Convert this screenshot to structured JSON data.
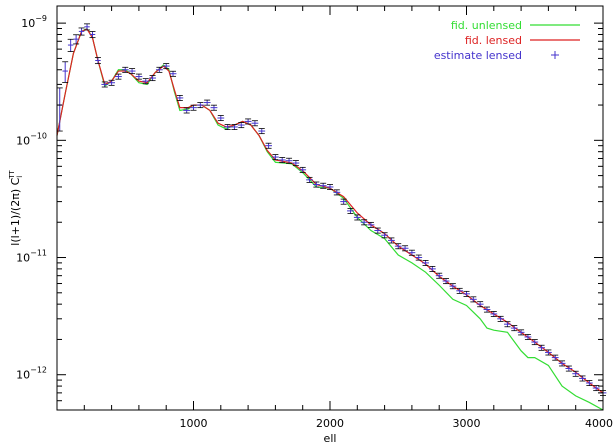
{
  "chart_data": {
    "type": "line",
    "xlabel": "ell",
    "ylabel": "l(l+1)/(2π) C",
    "ylabel_sub": "l",
    "ylabel_sup": "TT",
    "xlim": [
      0,
      4000
    ],
    "ylim": [
      5e-13,
      1.4e-09
    ],
    "yscale": "log",
    "grid": false,
    "legend_position": "top-right",
    "x_ticks": [
      {
        "value": 1000,
        "label": "1000"
      },
      {
        "value": 2000,
        "label": "2000"
      },
      {
        "value": 3000,
        "label": "3000"
      },
      {
        "value": 4000,
        "label": "4000"
      }
    ],
    "y_ticks": [
      {
        "value": 1e-09,
        "base": "10",
        "exp": "−9"
      },
      {
        "value": 1e-10,
        "base": "10",
        "exp": "−10"
      },
      {
        "value": 1e-11,
        "base": "10",
        "exp": "−11"
      },
      {
        "value": 1e-12,
        "base": "10",
        "exp": "−12"
      }
    ],
    "series": [
      {
        "name": "fid. unlensed",
        "style": "line",
        "color": "#33dd33",
        "x": [
          0,
          60,
          120,
          180,
          220,
          260,
          300,
          350,
          400,
          450,
          500,
          540,
          600,
          660,
          720,
          780,
          820,
          860,
          900,
          960,
          1000,
          1060,
          1120,
          1180,
          1240,
          1300,
          1360,
          1420,
          1480,
          1540,
          1600,
          1660,
          1720,
          1800,
          1900,
          2000,
          2100,
          2200,
          2300,
          2400,
          2500,
          2600,
          2700,
          2800,
          2900,
          3000,
          3100,
          3150,
          3200,
          3300,
          3400,
          3450,
          3500,
          3600,
          3700,
          3800,
          3900,
          4000
        ],
        "y": [
          1.1e-10,
          2.5e-10,
          5.5e-10,
          8.5e-10,
          9e-10,
          7.5e-10,
          4.8e-10,
          2.9e-10,
          3.2e-10,
          4e-10,
          4e-10,
          3.7e-10,
          3.1e-10,
          3e-10,
          3.8e-10,
          4.4e-10,
          4e-10,
          2.6e-10,
          1.8e-10,
          1.85e-10,
          2e-10,
          2e-10,
          1.8e-10,
          1.35e-10,
          1.25e-10,
          1.35e-10,
          1.45e-10,
          1.35e-10,
          1.1e-10,
          8e-11,
          6.5e-11,
          6.4e-11,
          6.3e-11,
          5.3e-11,
          4e-11,
          3.9e-11,
          3.2e-11,
          2.2e-11,
          1.7e-11,
          1.45e-11,
          1.05e-11,
          9e-12,
          7.5e-12,
          5.8e-12,
          4.4e-12,
          3.9e-12,
          3e-12,
          2.5e-12,
          2.4e-12,
          2.3e-12,
          1.6e-12,
          1.4e-12,
          1.4e-12,
          1.2e-12,
          8e-13,
          6.6e-13,
          5.8e-13,
          5e-13
        ]
      },
      {
        "name": "fid. lensed",
        "style": "line",
        "color": "#dd2222",
        "x": [
          0,
          60,
          120,
          180,
          220,
          260,
          300,
          350,
          400,
          450,
          500,
          540,
          600,
          660,
          720,
          780,
          820,
          860,
          900,
          960,
          1000,
          1060,
          1120,
          1180,
          1240,
          1300,
          1360,
          1420,
          1480,
          1540,
          1600,
          1660,
          1720,
          1800,
          1900,
          2000,
          2100,
          2200,
          2300,
          2400,
          2500,
          2600,
          2700,
          2800,
          2900,
          3000,
          3100,
          3200,
          3300,
          3400,
          3500,
          3600,
          3700,
          3800,
          3900,
          4000
        ],
        "y": [
          1.1e-10,
          2.5e-10,
          5.5e-10,
          8.5e-10,
          8.9e-10,
          7.5e-10,
          4.8e-10,
          3e-10,
          3.2e-10,
          3.9e-10,
          3.9e-10,
          3.7e-10,
          3.2e-10,
          3.1e-10,
          3.8e-10,
          4.3e-10,
          3.9e-10,
          2.7e-10,
          1.9e-10,
          1.9e-10,
          2e-10,
          2e-10,
          1.8e-10,
          1.4e-10,
          1.3e-10,
          1.35e-10,
          1.45e-10,
          1.35e-10,
          1.1e-10,
          8.2e-11,
          6.8e-11,
          6.6e-11,
          6.4e-11,
          5.5e-11,
          4.2e-11,
          3.9e-11,
          3.3e-11,
          2.4e-11,
          1.9e-11,
          1.6e-11,
          1.25e-11,
          1.05e-11,
          8.8e-12,
          6.9e-12,
          5.7e-12,
          4.8e-12,
          3.9e-12,
          3.3e-12,
          2.8e-12,
          2.3e-12,
          1.9e-12,
          1.55e-12,
          1.25e-12,
          1.05e-12,
          8.5e-13,
          7e-13
        ]
      },
      {
        "name": "estimate lensed",
        "style": "errorbars",
        "color": "#4433cc",
        "x": [
          20,
          60,
          100,
          140,
          180,
          220,
          260,
          300,
          350,
          400,
          450,
          500,
          550,
          600,
          650,
          700,
          750,
          800,
          850,
          900,
          950,
          1000,
          1050,
          1100,
          1150,
          1200,
          1250,
          1300,
          1350,
          1400,
          1450,
          1500,
          1550,
          1600,
          1650,
          1700,
          1750,
          1800,
          1850,
          1900,
          1950,
          2000,
          2050,
          2100,
          2150,
          2200,
          2250,
          2300,
          2350,
          2400,
          2450,
          2500,
          2550,
          2600,
          2650,
          2700,
          2750,
          2800,
          2850,
          2900,
          2950,
          3000,
          3050,
          3100,
          3150,
          3200,
          3250,
          3300,
          3350,
          3400,
          3450,
          3500,
          3550,
          3600,
          3650,
          3700,
          3750,
          3800,
          3850,
          3900,
          3950,
          4000
        ],
        "y": [
          2e-10,
          3.9e-10,
          6.5e-10,
          7.3e-10,
          8.5e-10,
          9.3e-10,
          8e-10,
          4.8e-10,
          3e-10,
          3.1e-10,
          3.5e-10,
          4e-10,
          3.9e-10,
          3.5e-10,
          3.2e-10,
          3.4e-10,
          4e-10,
          4.3e-10,
          3.7e-10,
          2.3e-10,
          1.8e-10,
          1.9e-10,
          2e-10,
          2.1e-10,
          1.9e-10,
          1.55e-10,
          1.3e-10,
          1.3e-10,
          1.35e-10,
          1.45e-10,
          1.4e-10,
          1.2e-10,
          9e-11,
          7.2e-11,
          6.8e-11,
          6.7e-11,
          6.4e-11,
          5.6e-11,
          4.6e-11,
          4.2e-11,
          4.1e-11,
          4e-11,
          3.6e-11,
          3e-11,
          2.5e-11,
          2.2e-11,
          2e-11,
          1.9e-11,
          1.7e-11,
          1.55e-11,
          1.4e-11,
          1.25e-11,
          1.2e-11,
          1.1e-11,
          1e-11,
          9e-12,
          8e-12,
          7e-12,
          6.3e-12,
          5.7e-12,
          5.2e-12,
          4.9e-12,
          4.4e-12,
          4e-12,
          3.6e-12,
          3.3e-12,
          3e-12,
          2.7e-12,
          2.5e-12,
          2.3e-12,
          2.1e-12,
          1.9e-12,
          1.7e-12,
          1.55e-12,
          1.4e-12,
          1.25e-12,
          1.13e-12,
          1.02e-12,
          9.3e-13,
          8.5e-13,
          7.7e-13,
          7e-13
        ],
        "xerr": [
          20,
          20,
          20,
          20,
          20,
          20,
          20,
          20,
          25,
          25,
          25,
          25,
          25,
          25,
          25,
          25,
          25,
          25,
          25,
          25,
          25,
          25,
          25,
          25,
          25,
          25,
          25,
          25,
          25,
          25,
          25,
          25,
          25,
          25,
          25,
          25,
          25,
          25,
          25,
          25,
          25,
          25,
          25,
          25,
          25,
          25,
          25,
          25,
          25,
          25,
          25,
          25,
          25,
          25,
          25,
          25,
          25,
          25,
          25,
          25,
          25,
          25,
          25,
          25,
          25,
          25,
          25,
          25,
          25,
          25,
          25,
          25,
          25,
          25,
          25,
          25,
          25,
          25,
          25,
          25,
          25,
          25
        ],
        "yerr_frac": [
          0.4,
          0.2,
          0.12,
          0.09,
          0.07,
          0.06,
          0.06,
          0.06,
          0.05,
          0.05,
          0.05,
          0.05,
          0.05,
          0.05,
          0.05,
          0.05,
          0.05,
          0.05,
          0.05,
          0.05,
          0.05,
          0.05,
          0.05,
          0.05,
          0.05,
          0.05,
          0.05,
          0.05,
          0.05,
          0.05,
          0.05,
          0.05,
          0.05,
          0.05,
          0.05,
          0.05,
          0.05,
          0.05,
          0.05,
          0.05,
          0.05,
          0.05,
          0.05,
          0.05,
          0.05,
          0.05,
          0.05,
          0.05,
          0.05,
          0.05,
          0.05,
          0.05,
          0.05,
          0.05,
          0.05,
          0.05,
          0.05,
          0.05,
          0.05,
          0.05,
          0.05,
          0.05,
          0.05,
          0.05,
          0.05,
          0.05,
          0.05,
          0.05,
          0.05,
          0.05,
          0.05,
          0.05,
          0.05,
          0.05,
          0.05,
          0.05,
          0.05,
          0.05,
          0.05,
          0.05,
          0.05,
          0.05
        ]
      }
    ]
  }
}
